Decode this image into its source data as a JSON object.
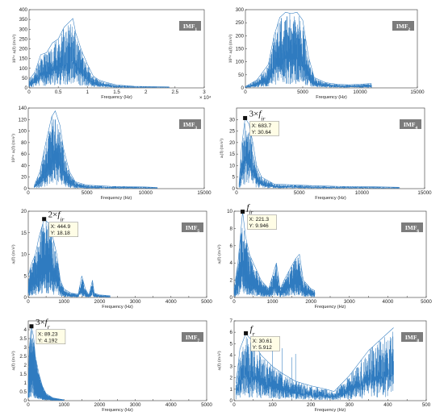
{
  "chart_data": [
    {
      "type": "line",
      "panel_label": "IMF1",
      "xlabel": "Frequency (Hz)",
      "ylabel": "10³× aᵢ(f) (m/s²)",
      "x_exponent_label": "× 10⁴",
      "xlim": [
        0,
        30000
      ],
      "ylim": [
        0,
        400
      ],
      "xticks": [
        0,
        5000,
        10000,
        15000,
        20000,
        25000,
        30000
      ],
      "xticklabels": [
        "0",
        "0.5",
        "1",
        "1.5",
        "2",
        "2.5",
        "3"
      ],
      "yticks": [
        0,
        50,
        100,
        150,
        200,
        250,
        300,
        350,
        400
      ],
      "envelope": [
        [
          0,
          40
        ],
        [
          1000,
          80
        ],
        [
          2000,
          170
        ],
        [
          3000,
          180
        ],
        [
          4000,
          230
        ],
        [
          5000,
          250
        ],
        [
          6000,
          310
        ],
        [
          7000,
          340
        ],
        [
          7500,
          355
        ],
        [
          8000,
          280
        ],
        [
          9000,
          190
        ],
        [
          10000,
          120
        ],
        [
          11000,
          60
        ],
        [
          12000,
          40
        ],
        [
          13000,
          30
        ],
        [
          15000,
          15
        ],
        [
          18000,
          8
        ],
        [
          22000,
          6
        ],
        [
          24000,
          5
        ]
      ]
    },
    {
      "type": "line",
      "panel_label": "IMF2",
      "xlabel": "Frequency (Hz)",
      "ylabel": "10³× aᵢ(f) (m/s²)",
      "xlim": [
        0,
        15000
      ],
      "ylim": [
        0,
        300
      ],
      "xticks": [
        0,
        5000,
        10000,
        15000
      ],
      "xticklabels": [
        "0",
        "5000",
        "10000",
        "15000"
      ],
      "yticks": [
        0,
        50,
        100,
        150,
        200,
        250,
        300
      ],
      "envelope": [
        [
          0,
          5
        ],
        [
          1000,
          30
        ],
        [
          2000,
          90
        ],
        [
          2500,
          200
        ],
        [
          3000,
          270
        ],
        [
          3500,
          290
        ],
        [
          4000,
          285
        ],
        [
          4500,
          290
        ],
        [
          5000,
          260
        ],
        [
          5500,
          120
        ],
        [
          6000,
          40
        ],
        [
          7000,
          20
        ],
        [
          8000,
          14
        ],
        [
          9000,
          12
        ],
        [
          10000,
          14
        ],
        [
          11000,
          17
        ]
      ]
    },
    {
      "type": "line",
      "panel_label": "IMF3",
      "xlabel": "Frequency (Hz)",
      "ylabel": "10³× aᵢ(f) (m/s²)",
      "xlim": [
        0,
        15000
      ],
      "ylim": [
        0,
        140
      ],
      "xticks": [
        0,
        5000,
        10000,
        15000
      ],
      "xticklabels": [
        "0",
        "5000",
        "10000",
        "15000"
      ],
      "yticks": [
        0,
        20,
        40,
        60,
        80,
        100,
        120,
        140
      ],
      "envelope": [
        [
          500,
          5
        ],
        [
          1000,
          30
        ],
        [
          1500,
          80
        ],
        [
          2000,
          125
        ],
        [
          2300,
          135
        ],
        [
          2700,
          110
        ],
        [
          3000,
          70
        ],
        [
          3500,
          30
        ],
        [
          4000,
          12
        ],
        [
          5000,
          6
        ],
        [
          7000,
          4
        ],
        [
          10000,
          3
        ],
        [
          11000,
          2
        ]
      ]
    },
    {
      "type": "line",
      "panel_label": "IMF4",
      "xlabel": "Frequency (Hz)",
      "ylabel": "aᵢ(f) (m/s²)",
      "xlim": [
        0,
        15000
      ],
      "ylim": [
        0,
        35
      ],
      "xticks": [
        0,
        5000,
        10000,
        15000
      ],
      "xticklabels": [
        "0",
        "5000",
        "10000",
        "15000"
      ],
      "yticks": [
        0,
        5,
        10,
        15,
        20,
        25,
        30
      ],
      "callout": "3×f_ir",
      "datatip": {
        "x": 683.7,
        "y": 30.64,
        "x_label": "X: 683.7",
        "y_label": "Y: 30.64"
      },
      "envelope": [
        [
          200,
          2
        ],
        [
          400,
          18
        ],
        [
          683.7,
          30.64
        ],
        [
          1000,
          28
        ],
        [
          1300,
          20
        ],
        [
          1600,
          10
        ],
        [
          2000,
          5
        ],
        [
          3000,
          2
        ],
        [
          5000,
          1.5
        ],
        [
          8000,
          1
        ],
        [
          11000,
          0.8
        ],
        [
          13000,
          0.6
        ]
      ]
    },
    {
      "type": "line",
      "panel_label": "IMF5",
      "xlabel": "Frequency (Hz)",
      "ylabel": "aᵢ(f) (m/s²)",
      "xlim": [
        0,
        5000
      ],
      "ylim": [
        0,
        20
      ],
      "xticks": [
        0,
        500,
        1000,
        1500,
        2000,
        2500,
        3000,
        3500,
        4000,
        4500,
        5000
      ],
      "xticklabels": [
        "0",
        "",
        "1000",
        "",
        "2000",
        "",
        "3000",
        "",
        "4000",
        "",
        "5000"
      ],
      "yticks": [
        0,
        5,
        10,
        15,
        20
      ],
      "callout": "2×f_ir",
      "datatip": {
        "x": 444.9,
        "y": 18.18,
        "x_label": "X: 444.9",
        "y_label": "Y: 18.18"
      },
      "envelope": [
        [
          0,
          5
        ],
        [
          100,
          8
        ],
        [
          200,
          10
        ],
        [
          300,
          14
        ],
        [
          444.9,
          18.18
        ],
        [
          600,
          17
        ],
        [
          800,
          10
        ],
        [
          900,
          4
        ],
        [
          1000,
          2
        ],
        [
          1200,
          1
        ],
        [
          1400,
          0.8
        ],
        [
          1500,
          5
        ],
        [
          1600,
          2
        ],
        [
          1700,
          0.5
        ],
        [
          1800,
          4
        ],
        [
          1850,
          1
        ],
        [
          2000,
          0.6
        ],
        [
          2300,
          0.4
        ]
      ]
    },
    {
      "type": "line",
      "panel_label": "IMF6",
      "xlabel": "Frequency (Hz)",
      "ylabel": "aᵢ(f) (m/s²)",
      "xlim": [
        0,
        5000
      ],
      "ylim": [
        0,
        10
      ],
      "xticks": [
        0,
        500,
        1000,
        1500,
        2000,
        2500,
        3000,
        3500,
        4000,
        4500,
        5000
      ],
      "xticklabels": [
        "0",
        "",
        "1000",
        "",
        "2000",
        "",
        "3000",
        "",
        "4000",
        "",
        "5000"
      ],
      "yticks": [
        0,
        2,
        4,
        6,
        8,
        10
      ],
      "callout": "f_ir",
      "datatip": {
        "x": 221.3,
        "y": 9.946,
        "x_label": "X: 221.3",
        "y_label": "Y: 9.946"
      },
      "envelope": [
        [
          0,
          1
        ],
        [
          100,
          4
        ],
        [
          221.3,
          9.946
        ],
        [
          300,
          7
        ],
        [
          400,
          5
        ],
        [
          500,
          4
        ],
        [
          600,
          3
        ],
        [
          700,
          2
        ],
        [
          900,
          1
        ],
        [
          1000,
          2.5
        ],
        [
          1100,
          4
        ],
        [
          1200,
          1
        ],
        [
          1300,
          2
        ],
        [
          1600,
          4.5
        ],
        [
          1700,
          5
        ],
        [
          1800,
          2
        ],
        [
          2000,
          1
        ],
        [
          2100,
          0.8
        ]
      ]
    },
    {
      "type": "line",
      "panel_label": "IMF7",
      "xlabel": "Frequency (Hz)",
      "ylabel": "aᵢ(f) (m/s²)",
      "xlim": [
        0,
        5000
      ],
      "ylim": [
        0,
        4.5
      ],
      "xticks": [
        0,
        500,
        1000,
        1500,
        2000,
        2500,
        3000,
        3500,
        4000,
        4500,
        5000
      ],
      "xticklabels": [
        "0",
        "",
        "1000",
        "",
        "2000",
        "",
        "3000",
        "",
        "4000",
        "",
        "5000"
      ],
      "yticks": [
        0,
        0.5,
        1,
        1.5,
        2,
        2.5,
        3,
        3.5,
        4
      ],
      "yticklabels": [
        "0",
        "0.5",
        "1",
        "1.5",
        "2",
        "2.5",
        "3",
        "3.5",
        "4"
      ],
      "callout": "3×f_r",
      "datatip": {
        "x": 89.23,
        "y": 4.192,
        "x_label": "X: 89.23",
        "y_label": "Y: 4.192"
      },
      "envelope": [
        [
          0,
          1
        ],
        [
          30,
          3
        ],
        [
          89.23,
          4.192
        ],
        [
          150,
          3.6
        ],
        [
          200,
          2.5
        ],
        [
          300,
          1.5
        ],
        [
          400,
          0.8
        ],
        [
          500,
          0.4
        ],
        [
          700,
          0.15
        ],
        [
          1000,
          0.05
        ]
      ]
    },
    {
      "type": "line",
      "panel_label": "IMF8",
      "xlabel": "Frequency (Hz)",
      "ylabel": "aᵢ(f) (m/s²)",
      "xlim": [
        0,
        500
      ],
      "ylim": [
        0,
        7
      ],
      "xticks": [
        0,
        50,
        100,
        150,
        200,
        250,
        300,
        350,
        400,
        450,
        500
      ],
      "xticklabels": [
        "0",
        "",
        "100",
        "",
        "200",
        "",
        "300",
        "",
        "400",
        "",
        "500"
      ],
      "yticks": [
        0,
        1,
        2,
        3,
        4,
        5,
        6,
        7
      ],
      "callout": "f_r",
      "datatip": {
        "x": 30.61,
        "y": 5.912,
        "x_label": "X: 30.61",
        "y_label": "Y: 5.912"
      },
      "envelope": [
        [
          5,
          1.5
        ],
        [
          15,
          4.5
        ],
        [
          30.61,
          5.912
        ],
        [
          40,
          5.5
        ],
        [
          50,
          5.2
        ],
        [
          70,
          4
        ],
        [
          100,
          3
        ],
        [
          130,
          2.3
        ],
        [
          160,
          1.7
        ],
        [
          200,
          1.3
        ],
        [
          240,
          1
        ],
        [
          260,
          0.8
        ],
        [
          300,
          2.2
        ],
        [
          350,
          4.4
        ],
        [
          415,
          6.4
        ]
      ],
      "spikes": [
        [
          100,
          5.2
        ],
        [
          125,
          4.6
        ],
        [
          150,
          3.8
        ],
        [
          160,
          4.1
        ]
      ]
    }
  ]
}
